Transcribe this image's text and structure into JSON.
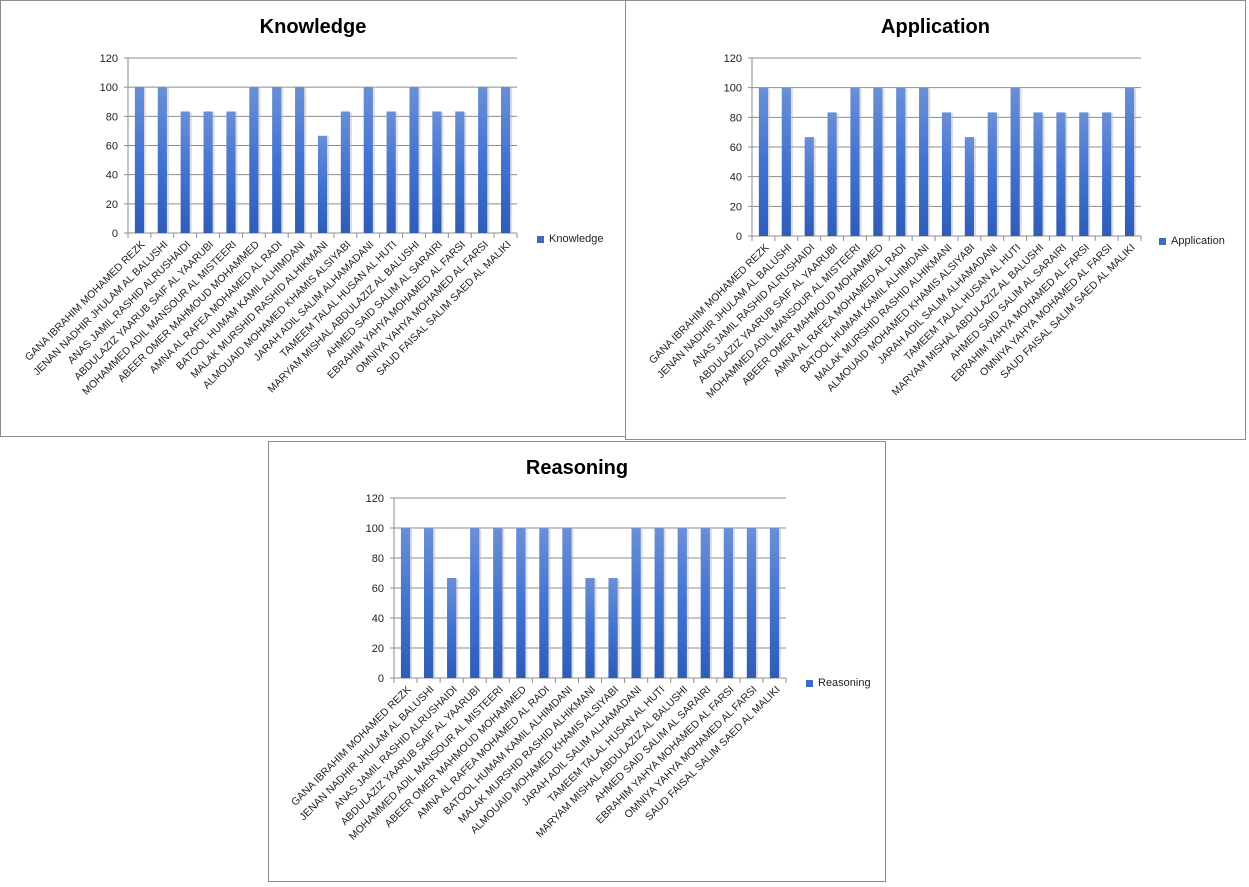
{
  "chart_data": [
    {
      "type": "bar",
      "title": "Knowledge",
      "legend": "Knowledge",
      "legend_position": "right",
      "xlabel": "",
      "ylabel": "",
      "ylim": [
        0,
        120
      ],
      "yticks": [
        "0",
        "20",
        "40",
        "60",
        "80",
        "100",
        "120"
      ],
      "grid": true,
      "categories": [
        "GANA IBRAHIM  MOHAMED REZK",
        "JENAN NADHIR JHULAM AL BALUSHI",
        "ANAS JAMIL  RASHID ALRUSHAIDI",
        "ABDULAZIZ YAARUB SAIF AL YAARUBI",
        "MOHAMMED ADIL MANSOUR AL MISTEERI",
        "ABEER OMER MAHMOUD  MOHAMMED",
        "AMNA AL RAFEA MOHAMED AL RADI",
        "BATOOL HUMAM KAMIL ALHIMDANI",
        "MALAK MURSHID  RASHID ALHIKMANI",
        "ALMOUAID MOHAMED  KHAMIS ALSIYABI",
        "JARAH ADIL SALIM ALHAMADANI",
        "TAMEEM TALAL HUSAN AL HUTI",
        "MARYAM MISHAL  ABDULAZIZ AL BALUSHI",
        "AHMED SAID SALIM AL SARAIRI",
        "EBRAHIM YAHYA  MOHAMED AL FARSI",
        "OMNIYA YAHYA MOHAMED  AL FARSI",
        "SAUD FAISAL SALIM SAED AL MALIKI"
      ],
      "values": [
        100,
        100,
        83.33,
        83.33,
        83.33,
        100,
        100,
        100,
        66.67,
        83.33,
        100,
        83.33,
        100,
        83.33,
        83.33,
        100,
        100
      ]
    },
    {
      "type": "bar",
      "title": "Application",
      "legend": "Application",
      "legend_position": "right",
      "xlabel": "",
      "ylabel": "",
      "ylim": [
        0,
        120
      ],
      "yticks": [
        "0",
        "20",
        "40",
        "60",
        "80",
        "100",
        "120"
      ],
      "grid": true,
      "categories": [
        "GANA IBRAHIM  MOHAMED REZK",
        "JENAN NADHIR JHULAM AL BALUSHI",
        "ANAS JAMIL  RASHID ALRUSHAIDI",
        "ABDULAZIZ YAARUB SAIF AL YAARUBI",
        "MOHAMMED ADIL MANSOUR AL MISTEERI",
        "ABEER OMER MAHMOUD  MOHAMMED",
        "AMNA AL RAFEA MOHAMED AL RADI",
        "BATOOL HUMAM KAMIL ALHIMDANI",
        "MALAK MURSHID  RASHID ALHIKMANI",
        "ALMOUAID MOHAMED  KHAMIS ALSIYABI",
        "JARAH ADIL SALIM ALHAMADANI",
        "TAMEEM TALAL HUSAN AL HUTI",
        "MARYAM MISHAL  ABDULAZIZ AL BALUSHI",
        "AHMED SAID SALIM AL SARAIRI",
        "EBRAHIM YAHYA  MOHAMED AL FARSI",
        "OMNIYA YAHYA MOHAMED  AL FARSI",
        "SAUD FAISAL SALIM SAED AL MALIKI"
      ],
      "values": [
        100,
        100,
        66.67,
        83.33,
        100,
        100,
        100,
        100,
        83.33,
        66.67,
        83.33,
        100,
        83.33,
        83.33,
        83.33,
        83.33,
        100
      ]
    },
    {
      "type": "bar",
      "title": "Reasoning",
      "legend": "Reasoning",
      "legend_position": "right",
      "xlabel": "",
      "ylabel": "",
      "ylim": [
        0,
        120
      ],
      "yticks": [
        "0",
        "20",
        "40",
        "60",
        "80",
        "100",
        "120"
      ],
      "grid": true,
      "categories": [
        "GANA IBRAHIM  MOHAMED REZK",
        "JENAN NADHIR JHULAM AL BALUSHI",
        "ANAS JAMIL  RASHID ALRUSHAIDI",
        "ABDULAZIZ YAARUB SAIF AL YAARUBI",
        "MOHAMMED ADIL MANSOUR AL MISTEERI",
        "ABEER OMER MAHMOUD  MOHAMMED",
        "AMNA AL RAFEA MOHAMED AL RADI",
        "BATOOL HUMAM KAMIL ALHIMDANI",
        "MALAK MURSHID  RASHID ALHIKMANI",
        "ALMOUAID MOHAMED  KHAMIS ALSIYABI",
        "JARAH ADIL SALIM ALHAMADANI",
        "TAMEEM TALAL HUSAN AL HUTI",
        "MARYAM MISHAL  ABDULAZIZ AL BALUSHI",
        "AHMED SAID SALIM AL SARAIRI",
        "EBRAHIM YAHYA  MOHAMED AL FARSI",
        "OMNIYA YAHYA MOHAMED  AL FARSI",
        "SAUD FAISAL SALIM SAED AL MALIKI"
      ],
      "values": [
        100,
        100,
        66.67,
        100,
        100,
        100,
        100,
        100,
        66.67,
        66.67,
        100,
        100,
        100,
        100,
        100,
        100,
        100
      ]
    }
  ],
  "colors": {
    "bar_top": "#6a8fd6",
    "bar_bottom": "#2e5cb8",
    "grid": "#8c8c8c"
  }
}
